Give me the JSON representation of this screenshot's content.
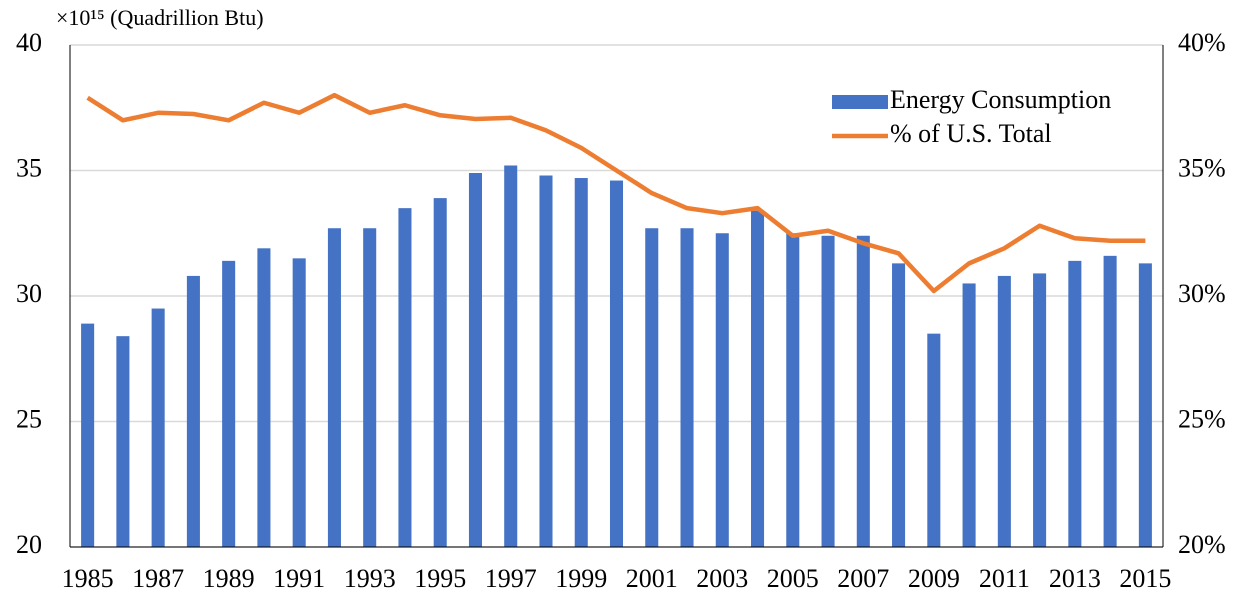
{
  "chart_data": {
    "type": "combo",
    "y_label": "×10¹⁵ (Quadrillion Btu)",
    "categories": [
      "1985",
      null,
      "1987",
      null,
      "1989",
      null,
      "1991",
      null,
      "1993",
      null,
      "1995",
      null,
      "1997",
      null,
      "1999",
      null,
      "2001",
      null,
      "2003",
      null,
      "2005",
      null,
      "2007",
      null,
      "2009",
      null,
      "2011",
      null,
      "2013",
      null,
      "2015"
    ],
    "series": [
      {
        "name": "Energy Consumption",
        "type": "bar",
        "color": "#4472c4",
        "values": [
          28.9,
          28.4,
          29.5,
          30.8,
          31.4,
          31.9,
          31.5,
          32.7,
          32.7,
          33.5,
          33.9,
          34.9,
          35.2,
          34.8,
          34.7,
          34.6,
          32.7,
          32.7,
          32.5,
          33.4,
          32.5,
          32.4,
          32.4,
          31.3,
          28.5,
          30.5,
          30.8,
          30.9,
          31.4,
          31.6,
          31.3
        ]
      },
      {
        "name": "% of U.S. Total",
        "type": "line",
        "axis": "y2",
        "color": "#ed7d31",
        "values": [
          37.9,
          37.0,
          37.3,
          37.25,
          37.0,
          37.7,
          37.3,
          38.0,
          37.3,
          37.6,
          37.2,
          37.05,
          37.1,
          36.6,
          35.9,
          35.0,
          34.1,
          33.5,
          33.3,
          33.5,
          32.4,
          32.6,
          32.1,
          31.7,
          30.2,
          31.3,
          31.9,
          32.8,
          32.3,
          32.2,
          32.2
        ]
      }
    ],
    "ylim": [
      20,
      40
    ],
    "yticks": [
      20,
      25,
      30,
      35,
      40
    ],
    "y2lim": [
      20,
      40
    ],
    "y2ticks": [
      {
        "value": 20,
        "label": "20%"
      },
      {
        "value": 25,
        "label": "25%"
      },
      {
        "value": 30,
        "label": "30%"
      },
      {
        "value": 35,
        "label": "35%"
      },
      {
        "value": 40,
        "label": "40%"
      }
    ],
    "grid": true,
    "legend": "upper right"
  }
}
